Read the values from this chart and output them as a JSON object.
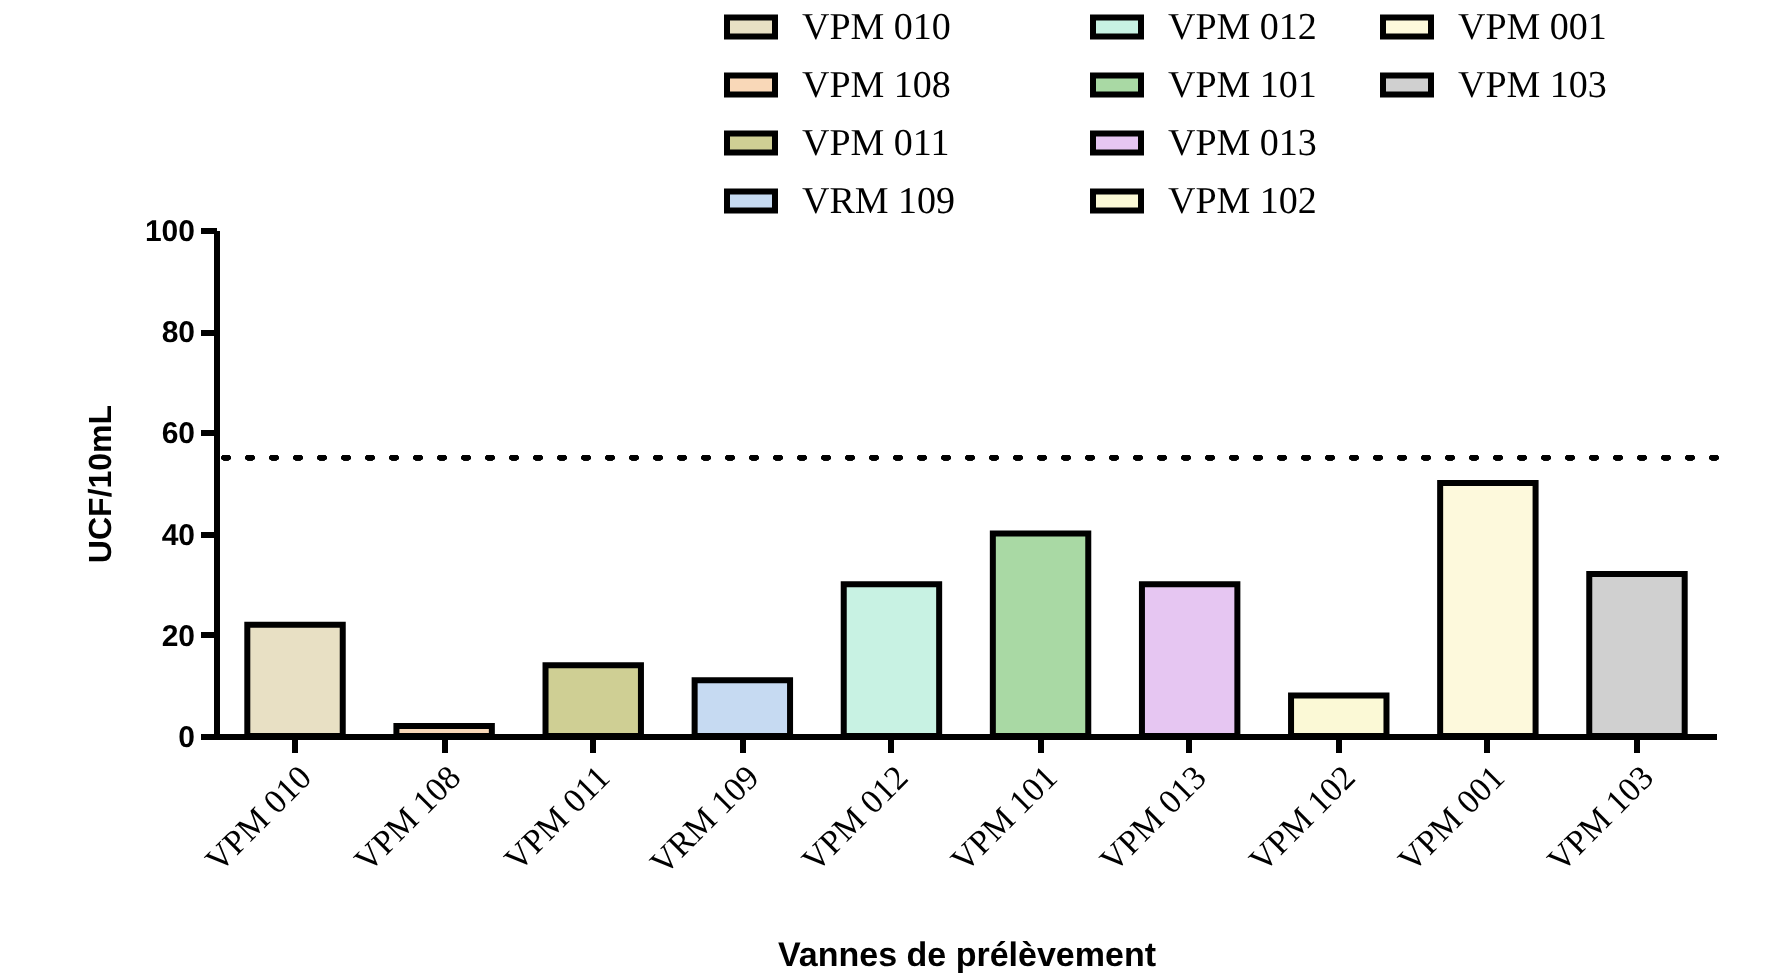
{
  "chart_data": {
    "type": "bar",
    "xlabel": "Vannes de prélèvement",
    "ylabel": "UCF/10mL",
    "categories": [
      "VPM 010",
      "VPM 108",
      "VPM 011",
      "VRM 109",
      "VPM 012",
      "VPM 101",
      "VPM 013",
      "VPM 102",
      "VPM 001",
      "VPM 103"
    ],
    "stacked": true,
    "series": [
      {
        "name": "VPM 010",
        "color": "#e8e0c4",
        "values": [
          22,
          null,
          null,
          null,
          null,
          null,
          null,
          null,
          null,
          null
        ]
      },
      {
        "name": "VPM 108",
        "color": "#f9d8b8",
        "values": [
          null,
          2,
          null,
          null,
          null,
          null,
          null,
          null,
          null,
          null
        ]
      },
      {
        "name": "VPM 011",
        "color": "#cfcf94",
        "values": [
          null,
          null,
          14,
          null,
          null,
          null,
          null,
          null,
          null,
          null
        ]
      },
      {
        "name": "VRM 109",
        "color": "#c6daf2",
        "values": [
          null,
          null,
          null,
          11,
          null,
          null,
          null,
          null,
          null,
          null
        ]
      },
      {
        "name": "VPM 012",
        "color": "#c8f2e3",
        "values": [
          null,
          null,
          null,
          null,
          30,
          null,
          null,
          null,
          null,
          null
        ]
      },
      {
        "name": "VPM 101",
        "color": "#a9d9a4",
        "values": [
          null,
          null,
          null,
          null,
          null,
          40,
          null,
          null,
          null,
          null
        ]
      },
      {
        "name": "VPM 013",
        "color": "#e6c6f2",
        "values": [
          null,
          null,
          null,
          null,
          null,
          null,
          30,
          null,
          null,
          null
        ]
      },
      {
        "name": "VPM 102",
        "color": "#fbf9d6",
        "values": [
          null,
          null,
          null,
          null,
          null,
          null,
          null,
          8,
          null,
          null
        ]
      },
      {
        "name": "VPM 001",
        "color": "#fdf9dc",
        "values": [
          null,
          null,
          null,
          null,
          null,
          null,
          null,
          null,
          50,
          null
        ]
      },
      {
        "name": "VPM 103",
        "color": "#d0d0d0",
        "values": [
          null,
          null,
          null,
          null,
          null,
          null,
          null,
          null,
          null,
          32
        ]
      }
    ],
    "ylim": [
      0,
      100
    ],
    "yticks": [
      0,
      20,
      40,
      60,
      80,
      100
    ],
    "grid": false,
    "legend": "top right",
    "ref_lines": [
      {
        "axis": "y",
        "value": 55,
        "line_style": "dotted",
        "color": "#000000"
      }
    ]
  }
}
